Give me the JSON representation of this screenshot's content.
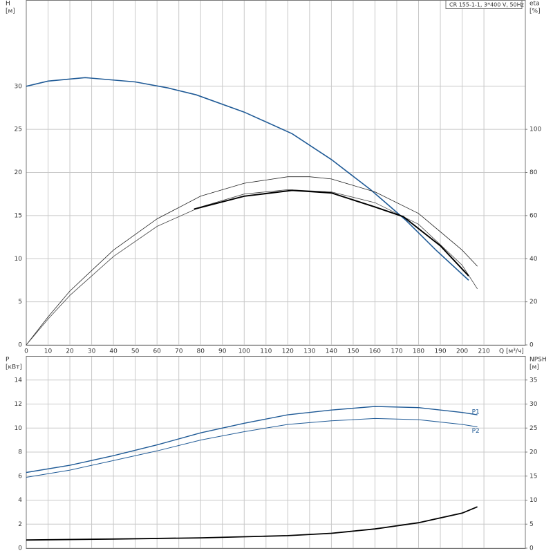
{
  "chart_data": [
    {
      "type": "line",
      "title": "CR 155-1-1, 3*400 V, 50Hz",
      "ylabel": "H",
      "ylabel_unit": "[м]",
      "y2label": "eta",
      "y2label_unit": "[%]",
      "xlabel": "Q [м³/ч]",
      "xlim": [
        0,
        229
      ],
      "xticks": [
        0,
        10,
        20,
        30,
        40,
        50,
        60,
        70,
        80,
        90,
        100,
        110,
        120,
        130,
        140,
        150,
        160,
        170,
        180,
        190,
        200,
        210
      ],
      "ylim": [
        0,
        40
      ],
      "yticks": [
        0,
        5,
        10,
        15,
        20,
        25,
        30
      ],
      "y2lim": [
        0,
        160
      ],
      "y2ticks": [
        0,
        20,
        40,
        60,
        80,
        100
      ],
      "grid": true,
      "series": [
        {
          "color": "#1f5a96",
          "line_width": 1.6,
          "x": [
            0,
            10,
            27,
            50,
            65,
            78,
            100,
            122,
            140,
            158,
            174,
            188,
            203
          ],
          "values": [
            30,
            30.6,
            31,
            30.5,
            29.8,
            29,
            27,
            24.5,
            21.5,
            18,
            14.5,
            11,
            7.5
          ]
        },
        {
          "color": "#222222",
          "line_width": 0.8,
          "axis": "y2",
          "x": [
            0,
            10,
            20,
            40,
            60,
            80,
            100,
            120,
            130,
            140,
            160,
            180,
            200,
            207
          ],
          "values": [
            0,
            13,
            25,
            44,
            58.5,
            69,
            75,
            78,
            78,
            77,
            71,
            61,
            44,
            36.5
          ]
        },
        {
          "color": "#444444",
          "line_width": 0.8,
          "axis": "y2",
          "x": [
            0,
            10,
            20,
            40,
            60,
            80,
            100,
            120,
            140,
            160,
            180,
            200,
            207
          ],
          "values": [
            0,
            12,
            23,
            41,
            55,
            64,
            70,
            72,
            71,
            66,
            56,
            37,
            26
          ]
        },
        {
          "color": "#000000",
          "line_width": 2,
          "axis": "y2",
          "x": [
            77,
            100,
            122,
            140,
            160,
            173,
            190,
            203
          ],
          "values": [
            63,
            69,
            71.7,
            70.5,
            64,
            59.5,
            46,
            32
          ]
        }
      ]
    },
    {
      "type": "line",
      "ylabel": "P",
      "ylabel_unit": "[кВт]",
      "y2label": "NPSH",
      "y2label_unit": "[м]",
      "xlim": [
        0,
        229
      ],
      "ylim": [
        0,
        16
      ],
      "yticks": [
        0,
        2,
        4,
        6,
        8,
        10,
        12,
        14
      ],
      "y2lim": [
        0,
        40
      ],
      "y2ticks": [
        0,
        5,
        10,
        15,
        20,
        25,
        30,
        35
      ],
      "grid": true,
      "series": [
        {
          "name": "P1",
          "color": "#1f5a96",
          "line_width": 1.4,
          "x": [
            0,
            20,
            40,
            60,
            80,
            100,
            120,
            140,
            160,
            180,
            200,
            207
          ],
          "values": [
            6.3,
            6.9,
            7.7,
            8.6,
            9.6,
            10.4,
            11.1,
            11.5,
            11.8,
            11.7,
            11.3,
            11.1
          ]
        },
        {
          "name": "P2",
          "color": "#1f5a96",
          "line_width": 1,
          "x": [
            0,
            20,
            40,
            60,
            80,
            100,
            120,
            140,
            160,
            180,
            200,
            207
          ],
          "values": [
            5.9,
            6.5,
            7.3,
            8.1,
            9.0,
            9.7,
            10.3,
            10.6,
            10.8,
            10.7,
            10.3,
            10.1
          ]
        },
        {
          "color": "#000000",
          "line_width": 1.8,
          "axis": "y2",
          "x": [
            0,
            40,
            80,
            120,
            140,
            160,
            180,
            200,
            207
          ],
          "values": [
            1.7,
            1.9,
            2.15,
            2.6,
            3.1,
            4,
            5.3,
            7.3,
            8.6
          ]
        }
      ]
    }
  ]
}
